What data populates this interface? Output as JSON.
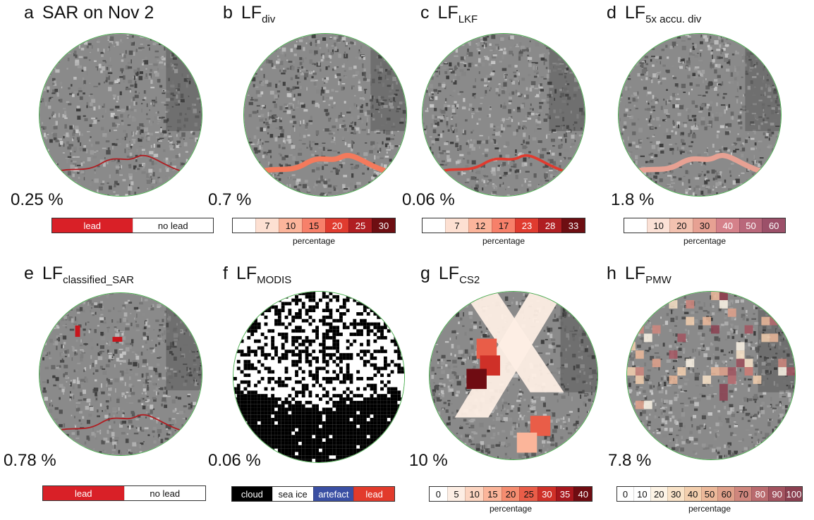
{
  "panels": [
    {
      "letter": "a",
      "label": "SAR on Nov 2",
      "subscript": "",
      "percent": "0.25 %",
      "legend": {
        "kind": "categorical",
        "items": [
          {
            "label": "lead",
            "color": "#d92027",
            "text": "#ffffff"
          },
          {
            "label": "no lead",
            "color": "#ffffff",
            "text": "#111111"
          }
        ]
      }
    },
    {
      "letter": "b",
      "label": "LF",
      "subscript": "div",
      "percent": "0.7 %",
      "legend": {
        "kind": "scale",
        "caption": "percentage",
        "ticks": [
          "",
          "7",
          "10",
          "15",
          "20",
          "25",
          "30"
        ],
        "colors": [
          "#ffffff",
          "#fde0d2",
          "#fcb59b",
          "#f7806a",
          "#e03b2f",
          "#b01e22",
          "#6e0e12"
        ]
      }
    },
    {
      "letter": "c",
      "label": "LF",
      "subscript": "LKF",
      "percent": "0.06 %",
      "legend": {
        "kind": "scale",
        "caption": "percentage",
        "ticks": [
          "",
          "7",
          "12",
          "17",
          "23",
          "28",
          "33"
        ],
        "colors": [
          "#ffffff",
          "#fde0d2",
          "#fcb59b",
          "#f7806a",
          "#e03b2f",
          "#b01e22",
          "#6e0e12"
        ]
      }
    },
    {
      "letter": "d",
      "label": "LF",
      "subscript": "5x accu. div",
      "percent": "1.8 %",
      "legend": {
        "kind": "scale",
        "caption": "percentage",
        "ticks": [
          "",
          "10",
          "20",
          "30",
          "40",
          "50",
          "60"
        ],
        "colors": [
          "#ffffff",
          "#fbe1d6",
          "#f3c2b0",
          "#e7a193",
          "#d5818a",
          "#b9677a",
          "#9c5069"
        ]
      }
    },
    {
      "letter": "e",
      "label": "LF",
      "subscript": "classified_SAR",
      "percent": "0.78 %",
      "legend": {
        "kind": "categorical",
        "items": [
          {
            "label": "lead",
            "color": "#d92027",
            "text": "#ffffff"
          },
          {
            "label": "no lead",
            "color": "#ffffff",
            "text": "#111111"
          }
        ]
      }
    },
    {
      "letter": "f",
      "label": "LF",
      "subscript": "MODIS",
      "percent": "0.06 %",
      "legend": {
        "kind": "categorical",
        "items": [
          {
            "label": "cloud",
            "color": "#000000",
            "text": "#ffffff"
          },
          {
            "label": "sea ice",
            "color": "#ffffff",
            "text": "#111111"
          },
          {
            "label": "artefact",
            "color": "#3a4fa3",
            "text": "#ffffff"
          },
          {
            "label": "lead",
            "color": "#e23b2c",
            "text": "#ffffff"
          }
        ]
      }
    },
    {
      "letter": "g",
      "label": "LF",
      "subscript": "CS2",
      "percent": "10 %",
      "legend": {
        "kind": "scale",
        "caption": "percentage",
        "ticks": [
          "0",
          "5",
          "10",
          "15",
          "20",
          "25",
          "30",
          "35",
          "40"
        ],
        "colors": [
          "#ffffff",
          "#fdeee4",
          "#fcd5c1",
          "#fbb59a",
          "#f58d70",
          "#e95d48",
          "#cf3028",
          "#a6171d",
          "#6f0c12"
        ]
      }
    },
    {
      "letter": "h",
      "label": "LF",
      "subscript": "PMW",
      "percent": "7.8 %",
      "legend": {
        "kind": "scale",
        "caption": "percentage",
        "ticks": [
          "0",
          "10",
          "20",
          "30",
          "40",
          "50",
          "60",
          "70",
          "80",
          "90",
          "100"
        ],
        "colors": [
          "#ffffff",
          "#ffffff",
          "#fdf4e6",
          "#f9e3c8",
          "#f3cfae",
          "#ecb99a",
          "#dfa08a",
          "#cf867d",
          "#b96a6e",
          "#a2535f",
          "#8b4050"
        ]
      }
    }
  ]
}
